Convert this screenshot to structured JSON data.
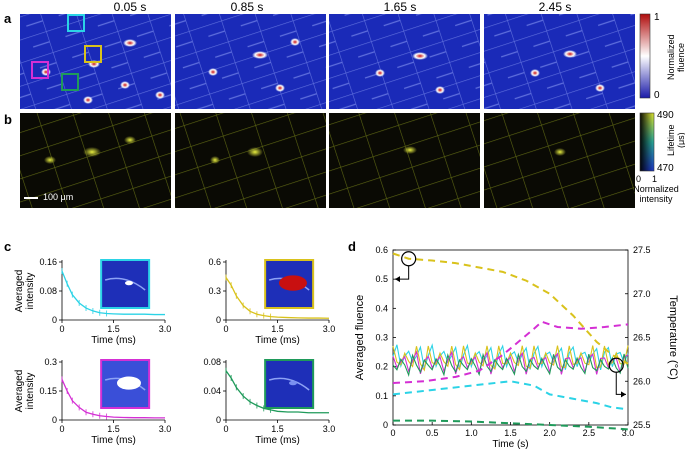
{
  "panel_labels": {
    "a": "a",
    "b": "b",
    "c": "c",
    "d": "d"
  },
  "times": [
    "0.05 s",
    "0.85 s",
    "1.65 s",
    "2.45 s"
  ],
  "colorbar_fluence": {
    "title_line1": "Normalized",
    "title_line2": "fluence",
    "max_label": "1",
    "min_label": "0"
  },
  "colorbar_lifetime": {
    "title_line1": "Lifetime",
    "title_line2": "(μs)",
    "max_label": "490",
    "min_label": "470",
    "x_min": "0",
    "x_max": "1",
    "x_title_line1": "Normalized",
    "x_title_line2": "intensity"
  },
  "scale_bar": "100 μm",
  "colors": {
    "cyan": "#2bd3e6",
    "yellow": "#d9c21c",
    "magenta": "#d42fd4",
    "green": "#1f9a5a",
    "map_blue": "#1a2ab8",
    "map_red": "#c81010"
  },
  "chart_data": [
    {
      "type": "line",
      "id": "c-cyan",
      "color": "cyan",
      "ylabel_line1": "Averaged",
      "ylabel_line2": "intensity",
      "xlabel": "Time (ms)",
      "xlim": [
        0,
        3.0
      ],
      "ylim": [
        0,
        0.16
      ],
      "xticks": [
        "0",
        "1.5",
        "3.0"
      ],
      "yticks": [
        "0",
        "0.08",
        "0.16"
      ],
      "x": [
        0,
        0.15,
        0.3,
        0.5,
        0.7,
        0.9,
        1.1,
        1.3,
        1.5,
        1.8,
        2.1,
        2.4,
        2.7,
        3.0
      ],
      "y": [
        0.135,
        0.1,
        0.07,
        0.047,
        0.033,
        0.025,
        0.02,
        0.018,
        0.017,
        0.016,
        0.016,
        0.016,
        0.015,
        0.015
      ]
    },
    {
      "type": "line",
      "id": "c-yellow",
      "color": "yellow",
      "ylabel_line1": "",
      "ylabel_line2": "",
      "xlabel": "Time (ms)",
      "xlim": [
        0,
        3.0
      ],
      "ylim": [
        0,
        0.6
      ],
      "xticks": [
        "0",
        "1.5",
        "3.0"
      ],
      "yticks": [
        "0",
        "0.3",
        "0.6"
      ],
      "x": [
        0,
        0.15,
        0.3,
        0.5,
        0.7,
        0.9,
        1.1,
        1.3,
        1.5,
        1.8,
        2.1,
        2.4,
        2.7,
        3.0
      ],
      "y": [
        0.44,
        0.36,
        0.25,
        0.15,
        0.09,
        0.06,
        0.045,
        0.035,
        0.03,
        0.025,
        0.022,
        0.02,
        0.02,
        0.018
      ]
    },
    {
      "type": "line",
      "id": "c-magenta",
      "color": "magenta",
      "ylabel_line1": "Averaged",
      "ylabel_line2": "intensity",
      "xlabel": "Time (ms)",
      "xlim": [
        0,
        3.0
      ],
      "ylim": [
        0,
        0.3
      ],
      "xticks": [
        "0",
        "1.5",
        "3.0"
      ],
      "yticks": [
        "0",
        "0.15",
        "0.3"
      ],
      "x": [
        0,
        0.15,
        0.3,
        0.5,
        0.7,
        0.9,
        1.1,
        1.3,
        1.5,
        1.8,
        2.1,
        2.4,
        2.7,
        3.0
      ],
      "y": [
        0.21,
        0.15,
        0.1,
        0.065,
        0.04,
        0.03,
        0.022,
        0.018,
        0.015,
        0.013,
        0.012,
        0.012,
        0.011,
        0.011
      ]
    },
    {
      "type": "line",
      "id": "c-green",
      "color": "green",
      "ylabel_line1": "",
      "ylabel_line2": "",
      "xlabel": "Time (ms)",
      "xlim": [
        0,
        3.0
      ],
      "ylim": [
        0,
        0.08
      ],
      "xticks": [
        "0",
        "1.5",
        "3.0"
      ],
      "yticks": [
        "0",
        "0.04",
        "0.08"
      ],
      "x": [
        0,
        0.15,
        0.3,
        0.5,
        0.7,
        0.9,
        1.1,
        1.3,
        1.5,
        1.8,
        2.1,
        2.4,
        2.7,
        3.0
      ],
      "y": [
        0.068,
        0.058,
        0.045,
        0.033,
        0.025,
        0.02,
        0.016,
        0.014,
        0.012,
        0.011,
        0.011,
        0.01,
        0.01,
        0.01
      ]
    },
    {
      "type": "line",
      "id": "d",
      "ylabel": "Averaged fluence",
      "y2label": "Temperature (°C)",
      "xlabel": "Time (s)",
      "xlim": [
        0,
        3.0
      ],
      "ylim": [
        0,
        0.6
      ],
      "y2lim": [
        25.5,
        27.5
      ],
      "xticks": [
        "0",
        "0.5",
        "1.0",
        "1.5",
        "2.0",
        "2.5",
        "3.0"
      ],
      "yticks": [
        "0",
        "0.1",
        "0.2",
        "0.3",
        "0.4",
        "0.5",
        "0.6"
      ],
      "y2ticks": [
        "25.5",
        "26.0",
        "26.5",
        "27.0",
        "27.5"
      ],
      "temperature_series": [
        {
          "color": "yellow",
          "x": [
            0,
            0.2,
            0.5,
            0.8,
            1.1,
            1.4,
            1.7,
            2.0,
            2.3,
            2.6,
            2.8,
            3.0
          ],
          "y": [
            27.46,
            27.4,
            27.38,
            27.35,
            27.3,
            27.25,
            27.15,
            27.0,
            26.75,
            26.45,
            26.3,
            26.2
          ]
        },
        {
          "color": "magenta",
          "x": [
            0,
            0.4,
            0.8,
            1.1,
            1.4,
            1.6,
            1.8,
            1.9,
            2.1,
            2.4,
            2.7,
            3.0
          ],
          "y": [
            25.98,
            26.0,
            26.05,
            26.12,
            26.3,
            26.45,
            26.6,
            26.68,
            26.62,
            26.6,
            26.62,
            26.65
          ]
        },
        {
          "color": "cyan",
          "x": [
            0,
            0.5,
            1.0,
            1.5,
            1.8,
            2.0,
            2.3,
            2.6,
            2.8,
            3.0
          ],
          "y": [
            25.85,
            25.9,
            25.95,
            26.0,
            25.95,
            25.85,
            25.8,
            25.75,
            25.7,
            25.68
          ]
        },
        {
          "color": "green",
          "x": [
            0,
            0.5,
            1.0,
            1.5,
            2.0,
            2.5,
            3.0
          ],
          "y": [
            25.55,
            25.55,
            25.54,
            25.52,
            25.5,
            25.48,
            25.45
          ]
        }
      ],
      "fluence_series": [
        {
          "color": "cyan",
          "mean": 0.235,
          "amp": 0.05,
          "phase": 0.0
        },
        {
          "color": "yellow",
          "mean": 0.225,
          "amp": 0.055,
          "phase": 1.3
        },
        {
          "color": "magenta",
          "mean": 0.215,
          "amp": 0.045,
          "phase": 2.2
        },
        {
          "color": "green",
          "mean": 0.205,
          "amp": 0.04,
          "phase": 3.1
        }
      ]
    }
  ]
}
